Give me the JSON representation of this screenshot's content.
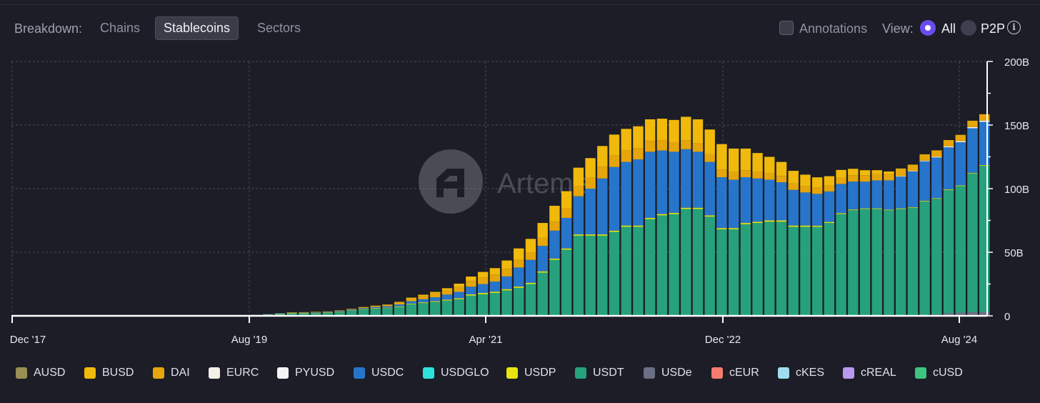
{
  "toolbar": {
    "breakdown_label": "Breakdown:",
    "tabs": [
      {
        "label": "Chains",
        "active": false
      },
      {
        "label": "Stablecoins",
        "active": true
      },
      {
        "label": "Sectors",
        "active": false
      }
    ],
    "annotations_label": "Annotations",
    "view_label": "View:",
    "view_options": [
      {
        "label": "All",
        "selected": true
      },
      {
        "label": "P2P",
        "selected": false
      }
    ],
    "info_icon": "info-icon"
  },
  "watermark": "Artemis",
  "chart_data": {
    "type": "bar",
    "stacked": true,
    "title": "",
    "ylabel": "",
    "xlabel": "",
    "ylim": [
      0,
      200
    ],
    "yticks": [
      "0",
      "50B",
      "100B",
      "150B",
      "200B"
    ],
    "x_tick_labels": [
      "Dec '17",
      "Aug '19",
      "Apr '21",
      "Dec '22",
      "Aug '24"
    ],
    "x_tick_indices": [
      0,
      20,
      40,
      60,
      80
    ],
    "grid": true,
    "legend_position": "bottom",
    "categories": [
      "2017-12",
      "2018-01",
      "2018-02",
      "2018-03",
      "2018-04",
      "2018-05",
      "2018-06",
      "2018-07",
      "2018-08",
      "2018-09",
      "2018-10",
      "2018-11",
      "2018-12",
      "2019-01",
      "2019-02",
      "2019-03",
      "2019-04",
      "2019-05",
      "2019-06",
      "2019-07",
      "2019-08",
      "2019-09",
      "2019-10",
      "2019-11",
      "2019-12",
      "2020-01",
      "2020-02",
      "2020-03",
      "2020-04",
      "2020-05",
      "2020-06",
      "2020-07",
      "2020-08",
      "2020-09",
      "2020-10",
      "2020-11",
      "2020-12",
      "2021-01",
      "2021-02",
      "2021-03",
      "2021-04",
      "2021-05",
      "2021-06",
      "2021-07",
      "2021-08",
      "2021-09",
      "2021-10",
      "2021-11",
      "2021-12",
      "2022-01",
      "2022-02",
      "2022-03",
      "2022-04",
      "2022-05",
      "2022-06",
      "2022-07",
      "2022-08",
      "2022-09",
      "2022-10",
      "2022-11",
      "2022-12",
      "2023-01",
      "2023-02",
      "2023-03",
      "2023-04",
      "2023-05",
      "2023-06",
      "2023-07",
      "2023-08",
      "2023-09",
      "2023-10",
      "2023-11",
      "2023-12",
      "2024-01",
      "2024-02",
      "2024-03",
      "2024-04",
      "2024-05",
      "2024-06",
      "2024-07",
      "2024-08",
      "2024-09"
    ],
    "series": [
      {
        "name": "AUSD",
        "color": "#9a8f52",
        "values": [
          0,
          0,
          0,
          0,
          0,
          0,
          0,
          0,
          0,
          0,
          0,
          0,
          0,
          0,
          0,
          0,
          0,
          0,
          0,
          0,
          0,
          0,
          0,
          0,
          0,
          0,
          0,
          0,
          0,
          0,
          0,
          0,
          0,
          0,
          0,
          0,
          0,
          0,
          0,
          0,
          0,
          0,
          0,
          0,
          0,
          0,
          0,
          0,
          0,
          0,
          0,
          0,
          0,
          0,
          0,
          0,
          0,
          0,
          0,
          0,
          0,
          0,
          0,
          0,
          0,
          0,
          0,
          0,
          0,
          0,
          0,
          0,
          0,
          0,
          0,
          0,
          0,
          0,
          0,
          0,
          0,
          0
        ]
      },
      {
        "name": "BUSD",
        "color": "#f0b90b",
        "values": [
          0,
          0,
          0,
          0,
          0,
          0,
          0,
          0,
          0,
          0,
          0,
          0,
          0,
          0,
          0,
          0,
          0,
          0,
          0,
          0,
          0,
          0,
          0,
          0,
          0,
          0,
          0,
          0,
          0,
          0.2,
          0.3,
          0.3,
          0.5,
          0.8,
          1,
          1.2,
          1.5,
          2.5,
          3.5,
          4.5,
          5,
          6.5,
          9,
          10.5,
          11.5,
          12.5,
          13.5,
          14.5,
          15.5,
          16.5,
          16.5,
          17,
          17,
          17,
          17,
          17.5,
          18.5,
          19,
          19.5,
          20,
          18.5,
          17,
          15,
          13,
          11,
          10,
          9,
          8,
          7,
          6,
          5,
          4,
          3,
          2,
          1,
          0,
          0,
          0,
          0,
          0,
          0,
          0
        ]
      },
      {
        "name": "DAI",
        "color": "#e5a50b",
        "values": [
          0,
          0,
          0,
          0,
          0,
          0,
          0,
          0,
          0,
          0,
          0,
          0,
          0,
          0,
          0,
          0,
          0,
          0,
          0,
          0,
          0,
          0,
          0,
          0.1,
          0.2,
          0.3,
          0.3,
          0.4,
          0.5,
          0.6,
          0.8,
          1,
          1.5,
          2,
          2.5,
          3,
          3.5,
          4,
          4.5,
          5,
          5.5,
          6,
          6,
          6,
          6.5,
          7,
          7.5,
          8,
          8.5,
          9,
          9,
          9,
          9,
          8.5,
          8,
          7.5,
          7,
          6.5,
          6,
          6,
          6,
          5.5,
          5,
          5,
          5,
          5,
          5,
          5,
          5,
          5,
          5,
          5,
          5,
          5,
          5,
          5,
          5,
          5,
          5,
          5,
          5,
          5
        ]
      },
      {
        "name": "EURC",
        "color": "#f2efe6",
        "values": [
          0,
          0,
          0,
          0,
          0,
          0,
          0,
          0,
          0,
          0,
          0,
          0,
          0,
          0,
          0,
          0,
          0,
          0,
          0,
          0,
          0,
          0,
          0,
          0,
          0,
          0,
          0,
          0,
          0,
          0,
          0,
          0,
          0,
          0,
          0,
          0,
          0,
          0,
          0,
          0,
          0,
          0,
          0,
          0,
          0,
          0,
          0,
          0,
          0,
          0,
          0,
          0,
          0,
          0,
          0,
          0,
          0,
          0,
          0,
          0,
          0,
          0,
          0,
          0,
          0,
          0,
          0,
          0,
          0,
          0,
          0,
          0,
          0,
          0,
          0,
          0,
          0,
          0,
          0,
          0,
          0,
          0
        ]
      },
      {
        "name": "PYUSD",
        "color": "#f4f4f4",
        "values": [
          0,
          0,
          0,
          0,
          0,
          0,
          0,
          0,
          0,
          0,
          0,
          0,
          0,
          0,
          0,
          0,
          0,
          0,
          0,
          0,
          0,
          0,
          0,
          0,
          0,
          0,
          0,
          0,
          0,
          0,
          0,
          0,
          0,
          0,
          0,
          0,
          0,
          0,
          0,
          0,
          0,
          0,
          0,
          0,
          0,
          0,
          0,
          0,
          0,
          0,
          0,
          0,
          0,
          0,
          0,
          0,
          0,
          0,
          0,
          0,
          0,
          0,
          0,
          0,
          0,
          0,
          0,
          0,
          0,
          0,
          0,
          0,
          0,
          0,
          0.3,
          0.4,
          0.5,
          0.6,
          0.7,
          0.8,
          0.9,
          1
        ]
      },
      {
        "name": "USDC",
        "color": "#2775ca",
        "values": [
          0,
          0,
          0,
          0,
          0,
          0,
          0,
          0,
          0,
          0,
          0,
          0,
          0,
          0,
          0,
          0,
          0,
          0,
          0,
          0,
          0.3,
          0.4,
          0.4,
          0.4,
          0.5,
          0.5,
          0.5,
          0.6,
          0.7,
          0.8,
          1,
          1.2,
          1.5,
          2,
          2.5,
          3,
          4,
          5,
          6,
          7,
          8,
          10,
          15,
          18,
          20,
          22,
          24,
          30,
          36,
          44,
          50,
          50,
          52,
          52,
          50,
          48,
          46,
          44,
          42,
          40,
          38,
          36,
          34,
          32,
          30,
          28,
          26,
          25,
          24,
          23,
          22,
          21,
          22,
          23,
          25,
          28,
          31,
          32,
          33,
          34,
          35,
          34
        ]
      },
      {
        "name": "USDGLO",
        "color": "#2de2d8",
        "values": [
          0,
          0,
          0,
          0,
          0,
          0,
          0,
          0,
          0,
          0,
          0,
          0,
          0,
          0,
          0,
          0,
          0,
          0,
          0,
          0,
          0,
          0,
          0,
          0,
          0,
          0,
          0,
          0,
          0,
          0,
          0,
          0,
          0,
          0,
          0,
          0,
          0,
          0,
          0,
          0,
          0,
          0,
          0,
          0,
          0,
          0,
          0,
          0,
          0,
          0,
          0,
          0,
          0,
          0,
          0,
          0,
          0,
          0,
          0,
          0,
          0,
          0,
          0,
          0,
          0,
          0,
          0,
          0,
          0,
          0,
          0,
          0,
          0,
          0,
          0,
          0,
          0,
          0,
          0,
          0,
          0,
          0
        ]
      },
      {
        "name": "USDP",
        "color": "#e8e510",
        "values": [
          0,
          0,
          0,
          0,
          0,
          0,
          0,
          0,
          0,
          0,
          0,
          0,
          0,
          0,
          0,
          0,
          0,
          0,
          0,
          0,
          0,
          0.2,
          0.2,
          0.2,
          0.2,
          0.2,
          0.2,
          0.3,
          0.3,
          0.3,
          0.4,
          0.4,
          0.5,
          0.5,
          0.6,
          0.6,
          0.7,
          0.8,
          0.9,
          1,
          1,
          1,
          1,
          1,
          1,
          1,
          1,
          1,
          1,
          1,
          1,
          1,
          1,
          1,
          1,
          1,
          1,
          1,
          1,
          1,
          1,
          1,
          1,
          1,
          1,
          1,
          1,
          0.9,
          0.8,
          0.7,
          0.6,
          0.5,
          0.5,
          0.5,
          0.5,
          0.5,
          0.5,
          0.5,
          0.5,
          0.5,
          0.5,
          0.5
        ]
      },
      {
        "name": "USDT",
        "color": "#26a17b",
        "values": [
          0,
          0,
          0,
          0,
          0,
          0,
          0,
          0,
          0,
          0,
          0,
          0,
          0,
          0,
          0,
          0,
          0,
          0,
          0,
          0,
          0.5,
          0.8,
          1.5,
          2,
          2,
          2.2,
          2.5,
          3,
          4,
          5,
          5.5,
          6,
          7,
          9,
          10,
          11,
          12,
          13,
          16,
          17,
          18,
          20,
          22,
          25,
          34,
          44,
          52,
          63,
          63,
          63,
          66,
          70,
          70,
          76,
          79,
          80,
          84,
          84,
          78,
          68,
          68,
          72,
          73,
          74,
          74,
          70,
          70,
          70,
          73,
          80,
          83,
          84,
          84,
          83,
          84,
          85,
          90,
          92,
          99,
          102,
          112,
          118
        ]
      },
      {
        "name": "USDe",
        "color": "#6b6f85",
        "values": [
          0,
          0,
          0,
          0,
          0,
          0,
          0,
          0,
          0,
          0,
          0,
          0,
          0,
          0,
          0,
          0,
          0,
          0,
          0,
          0,
          0,
          0,
          0,
          0,
          0,
          0,
          0,
          0,
          0,
          0,
          0,
          0,
          0,
          0,
          0,
          0,
          0,
          0,
          0,
          0,
          0,
          0,
          0,
          0,
          0,
          0,
          0,
          0,
          0,
          0,
          0,
          0,
          0,
          0,
          0,
          0,
          0,
          0,
          0,
          0,
          0,
          0,
          0,
          0,
          0,
          0,
          0,
          0,
          0,
          0,
          0,
          0,
          0,
          0,
          0,
          0,
          0,
          1,
          2,
          2.5,
          3,
          3
        ]
      },
      {
        "name": "cEUR",
        "color": "#f47c6e",
        "values": [
          0,
          0,
          0,
          0,
          0,
          0,
          0,
          0,
          0,
          0,
          0,
          0,
          0,
          0,
          0,
          0,
          0,
          0,
          0,
          0,
          0,
          0,
          0,
          0,
          0,
          0,
          0,
          0,
          0,
          0,
          0,
          0,
          0,
          0,
          0,
          0,
          0,
          0,
          0,
          0,
          0,
          0,
          0,
          0,
          0,
          0,
          0,
          0,
          0,
          0,
          0,
          0,
          0,
          0,
          0,
          0,
          0,
          0,
          0,
          0,
          0,
          0,
          0,
          0,
          0,
          0,
          0,
          0,
          0,
          0,
          0,
          0,
          0,
          0,
          0,
          0,
          0,
          0,
          0,
          0,
          0,
          0
        ]
      },
      {
        "name": "cKES",
        "color": "#9fdcf2",
        "values": [
          0,
          0,
          0,
          0,
          0,
          0,
          0,
          0,
          0,
          0,
          0,
          0,
          0,
          0,
          0,
          0,
          0,
          0,
          0,
          0,
          0,
          0,
          0,
          0,
          0,
          0,
          0,
          0,
          0,
          0,
          0,
          0,
          0,
          0,
          0,
          0,
          0,
          0,
          0,
          0,
          0,
          0,
          0,
          0,
          0,
          0,
          0,
          0,
          0,
          0,
          0,
          0,
          0,
          0,
          0,
          0,
          0,
          0,
          0,
          0,
          0,
          0,
          0,
          0,
          0,
          0,
          0,
          0,
          0,
          0,
          0,
          0,
          0,
          0,
          0,
          0,
          0,
          0,
          0,
          0,
          0,
          0
        ]
      },
      {
        "name": "cREAL",
        "color": "#b999ef",
        "values": [
          0,
          0,
          0,
          0,
          0,
          0,
          0,
          0,
          0,
          0,
          0,
          0,
          0,
          0,
          0,
          0,
          0,
          0,
          0,
          0,
          0,
          0,
          0,
          0,
          0,
          0,
          0,
          0,
          0,
          0,
          0,
          0,
          0,
          0,
          0,
          0,
          0,
          0,
          0,
          0,
          0,
          0,
          0,
          0,
          0,
          0,
          0,
          0,
          0,
          0,
          0,
          0,
          0,
          0,
          0,
          0,
          0,
          0,
          0,
          0,
          0,
          0,
          0,
          0,
          0,
          0,
          0,
          0,
          0,
          0,
          0,
          0,
          0,
          0,
          0,
          0,
          0,
          0,
          0,
          0,
          0,
          0
        ]
      },
      {
        "name": "cUSD",
        "color": "#3ec47f",
        "values": [
          0,
          0,
          0,
          0,
          0,
          0,
          0,
          0,
          0,
          0,
          0,
          0,
          0,
          0,
          0,
          0,
          0,
          0,
          0,
          0,
          0,
          0,
          0,
          0,
          0,
          0,
          0,
          0,
          0,
          0,
          0,
          0,
          0,
          0,
          0,
          0,
          0,
          0,
          0,
          0,
          0,
          0,
          0,
          0,
          0,
          0,
          0,
          0,
          0,
          0,
          0,
          0,
          0,
          0,
          0,
          0,
          0,
          0,
          0,
          0,
          0,
          0,
          0,
          0,
          0,
          0,
          0,
          0,
          0,
          0,
          0,
          0,
          0,
          0,
          0,
          0,
          0,
          0,
          0,
          0,
          0,
          0
        ]
      }
    ]
  }
}
